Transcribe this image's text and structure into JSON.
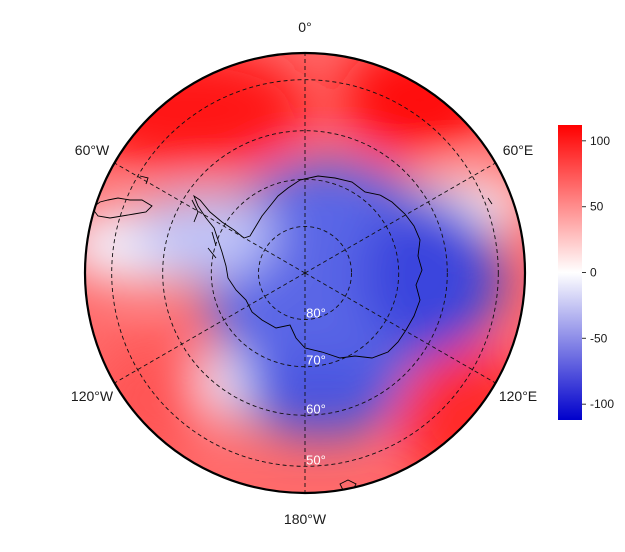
{
  "map": {
    "projection": "south-polar-stereographic",
    "lon_labels": [
      {
        "text": "0°",
        "lon": 0
      },
      {
        "text": "60°E",
        "lon": 60
      },
      {
        "text": "120°E",
        "lon": 120
      },
      {
        "text": "180°W",
        "lon": 180
      },
      {
        "text": "120°W",
        "lon": -120
      },
      {
        "text": "60°W",
        "lon": -60
      }
    ],
    "lat_circles": [
      -50,
      -60,
      -70,
      -80
    ],
    "lat_labels": [
      {
        "text": "50°",
        "lat": -50
      },
      {
        "text": "60°",
        "lat": -60
      },
      {
        "text": "70°",
        "lat": -70
      },
      {
        "text": "80°",
        "lat": -80
      }
    ],
    "outer_lat": -45
  },
  "colorbar": {
    "min": -112,
    "max": 112,
    "ticks": [
      100,
      50,
      0,
      -50,
      -100
    ],
    "tick_labels": [
      "100",
      "50",
      "0",
      "-50",
      "-100"
    ],
    "colors": {
      "low": "#0000cc",
      "mid": "#ffffff",
      "high": "#ff0000"
    }
  }
}
